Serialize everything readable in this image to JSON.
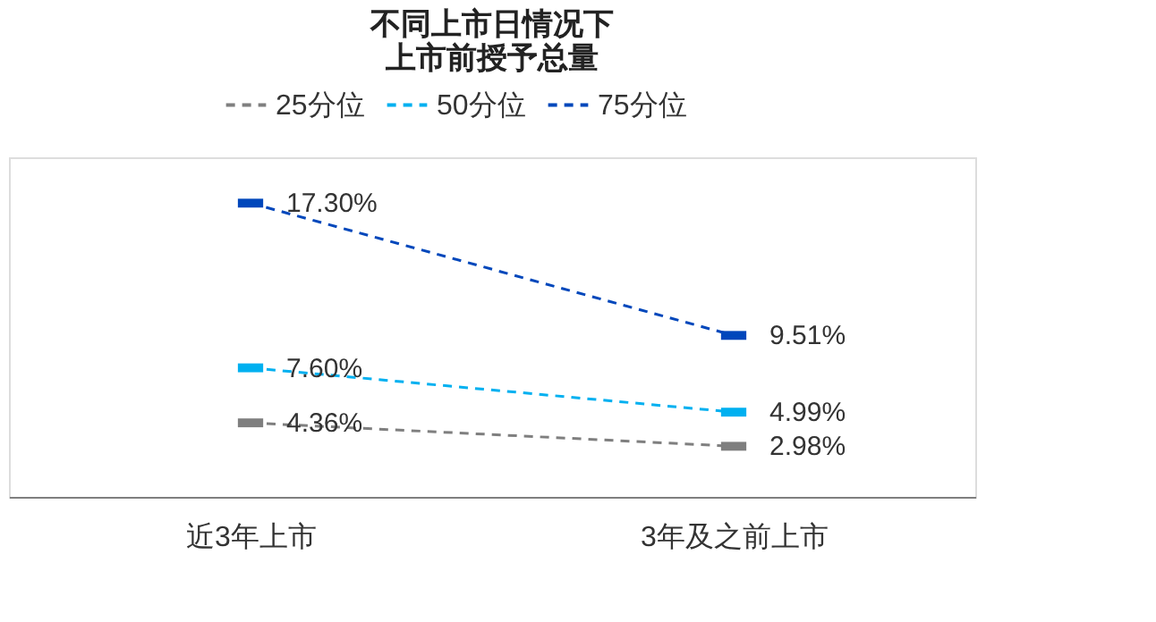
{
  "chart_data": {
    "type": "line",
    "title": "不同上市日情况下上市前授予总量",
    "categories": [
      "近3年上市",
      "3年及之前上市"
    ],
    "series": [
      {
        "name": "25分位",
        "color": "#7f7f7f",
        "values": [
          4.36,
          2.98
        ],
        "value_labels": [
          "4.36%",
          "2.98%"
        ]
      },
      {
        "name": "50分位",
        "color": "#00b0f0",
        "values": [
          7.6,
          4.99
        ],
        "value_labels": [
          "7.60%",
          "4.99%"
        ]
      },
      {
        "name": "75分位",
        "color": "#0047bb",
        "values": [
          17.3,
          9.51
        ],
        "value_labels": [
          "17.30%",
          "9.51%"
        ]
      }
    ],
    "ylim": [
      0,
      20
    ],
    "tick_labels": "x",
    "grid": false,
    "legend": "top",
    "marker": "square",
    "line_style": "dashed"
  }
}
